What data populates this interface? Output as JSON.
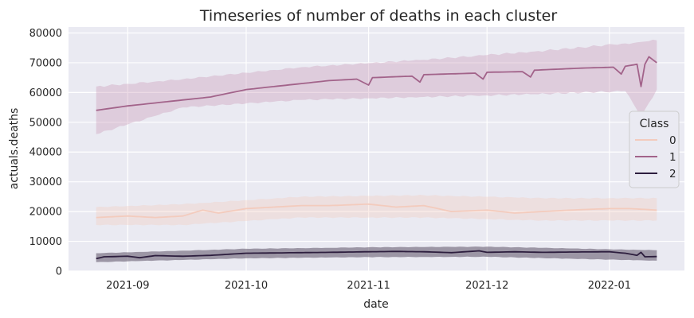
{
  "chart_data": {
    "type": "line",
    "title": "Timeseries of number of deaths in each cluster",
    "xlabel": "date",
    "ylabel": "actuals.deaths",
    "x_range": [
      "2021-08-17",
      "2022-01-20"
    ],
    "x_start": "2021-08-24",
    "x_end": "2022-01-13",
    "ylim": [
      0,
      82000
    ],
    "y_ticks": [
      0,
      10000,
      20000,
      30000,
      40000,
      50000,
      60000,
      70000,
      80000
    ],
    "y_tick_labels": [
      "0",
      "10000",
      "20000",
      "30000",
      "40000",
      "50000",
      "60000",
      "70000",
      "80000"
    ],
    "x_ticks": [
      "2021-09-01",
      "2021-10-01",
      "2021-11-01",
      "2021-12-01",
      "2022-01-01"
    ],
    "x_tick_labels": [
      "2021-09",
      "2021-10",
      "2021-11",
      "2021-12",
      "2022-01"
    ],
    "grid": true,
    "legend": {
      "title": "Class",
      "placement": "right"
    },
    "series": [
      {
        "name": "0",
        "color": "#f3cbbd",
        "band_color": "#f3cbbd",
        "points": [
          [
            "2021-08-24",
            18000
          ],
          [
            "2021-09-01",
            18500
          ],
          [
            "2021-09-08",
            18000
          ],
          [
            "2021-09-15",
            18500
          ],
          [
            "2021-09-20",
            20500
          ],
          [
            "2021-09-24",
            19500
          ],
          [
            "2021-10-01",
            21000
          ],
          [
            "2021-10-08",
            21500
          ],
          [
            "2021-10-15",
            22000
          ],
          [
            "2021-10-22",
            22000
          ],
          [
            "2021-11-01",
            22500
          ],
          [
            "2021-11-08",
            21500
          ],
          [
            "2021-11-15",
            22000
          ],
          [
            "2021-11-22",
            20000
          ],
          [
            "2021-12-01",
            20500
          ],
          [
            "2021-12-08",
            19500
          ],
          [
            "2021-12-15",
            20000
          ],
          [
            "2021-12-22",
            20500
          ],
          [
            "2022-01-01",
            21000
          ],
          [
            "2022-01-06",
            21000
          ],
          [
            "2022-01-13",
            20500
          ]
        ],
        "band": [
          [
            "2021-08-24",
            15500,
            21500
          ],
          [
            "2021-09-15",
            15500,
            22500
          ],
          [
            "2021-10-15",
            18000,
            25000
          ],
          [
            "2021-11-15",
            18000,
            25500
          ],
          [
            "2021-12-15",
            17000,
            24500
          ],
          [
            "2022-01-13",
            17000,
            24500
          ]
        ]
      },
      {
        "name": "1",
        "color": "#a2638a",
        "band_color": "#c895b5",
        "points": [
          [
            "2021-08-24",
            54000
          ],
          [
            "2021-09-01",
            55500
          ],
          [
            "2021-09-08",
            56500
          ],
          [
            "2021-09-15",
            57500
          ],
          [
            "2021-09-22",
            58500
          ],
          [
            "2021-10-01",
            61000
          ],
          [
            "2021-10-08",
            62000
          ],
          [
            "2021-10-15",
            63000
          ],
          [
            "2021-10-22",
            64000
          ],
          [
            "2021-10-29",
            64500
          ],
          [
            "2021-11-01",
            62500
          ],
          [
            "2021-11-02",
            65000
          ],
          [
            "2021-11-12",
            65500
          ],
          [
            "2021-11-14",
            63500
          ],
          [
            "2021-11-15",
            66000
          ],
          [
            "2021-11-28",
            66500
          ],
          [
            "2021-11-30",
            64500
          ],
          [
            "2021-12-01",
            66800
          ],
          [
            "2021-12-10",
            67000
          ],
          [
            "2021-12-12",
            65200
          ],
          [
            "2021-12-13",
            67500
          ],
          [
            "2021-12-25",
            68200
          ],
          [
            "2022-01-02",
            68500
          ],
          [
            "2022-01-04",
            66200
          ],
          [
            "2022-01-05",
            68800
          ],
          [
            "2022-01-08",
            69500
          ],
          [
            "2022-01-09",
            62000
          ],
          [
            "2022-01-10",
            69500
          ],
          [
            "2022-01-11",
            72000
          ],
          [
            "2022-01-13",
            70000
          ]
        ],
        "band": [
          [
            "2021-08-24",
            46000,
            62000
          ],
          [
            "2021-09-15",
            55000,
            64500
          ],
          [
            "2021-10-15",
            57500,
            68500
          ],
          [
            "2021-11-15",
            58500,
            71000
          ],
          [
            "2021-12-15",
            59500,
            74000
          ],
          [
            "2022-01-05",
            60500,
            76500
          ],
          [
            "2022-01-09",
            52000,
            77000
          ],
          [
            "2022-01-13",
            61000,
            77500
          ]
        ]
      },
      {
        "name": "2",
        "color": "#2d1e3e",
        "band_color": "#5b5066",
        "points": [
          [
            "2021-08-24",
            4200
          ],
          [
            "2021-08-26",
            4800
          ],
          [
            "2021-09-01",
            5000
          ],
          [
            "2021-09-04",
            4500
          ],
          [
            "2021-09-08",
            5200
          ],
          [
            "2021-09-15",
            5000
          ],
          [
            "2021-09-22",
            5300
          ],
          [
            "2021-10-01",
            6000
          ],
          [
            "2021-10-08",
            6100
          ],
          [
            "2021-10-15",
            6200
          ],
          [
            "2021-10-22",
            6300
          ],
          [
            "2021-11-01",
            6500
          ],
          [
            "2021-11-08",
            6600
          ],
          [
            "2021-11-15",
            6500
          ],
          [
            "2021-11-22",
            6200
          ],
          [
            "2021-11-29",
            6800
          ],
          [
            "2021-12-01",
            6300
          ],
          [
            "2021-12-08",
            6500
          ],
          [
            "2021-12-15",
            6300
          ],
          [
            "2021-12-22",
            6400
          ],
          [
            "2022-01-01",
            6500
          ],
          [
            "2022-01-05",
            6000
          ],
          [
            "2022-01-08",
            5300
          ],
          [
            "2022-01-09",
            6300
          ],
          [
            "2022-01-10",
            4800
          ],
          [
            "2022-01-13",
            4900
          ]
        ],
        "band": [
          [
            "2021-08-24",
            3000,
            6000
          ],
          [
            "2021-10-01",
            4300,
            7500
          ],
          [
            "2021-11-01",
            4700,
            8000
          ],
          [
            "2021-12-01",
            4800,
            8200
          ],
          [
            "2022-01-13",
            3500,
            7000
          ]
        ]
      }
    ]
  }
}
